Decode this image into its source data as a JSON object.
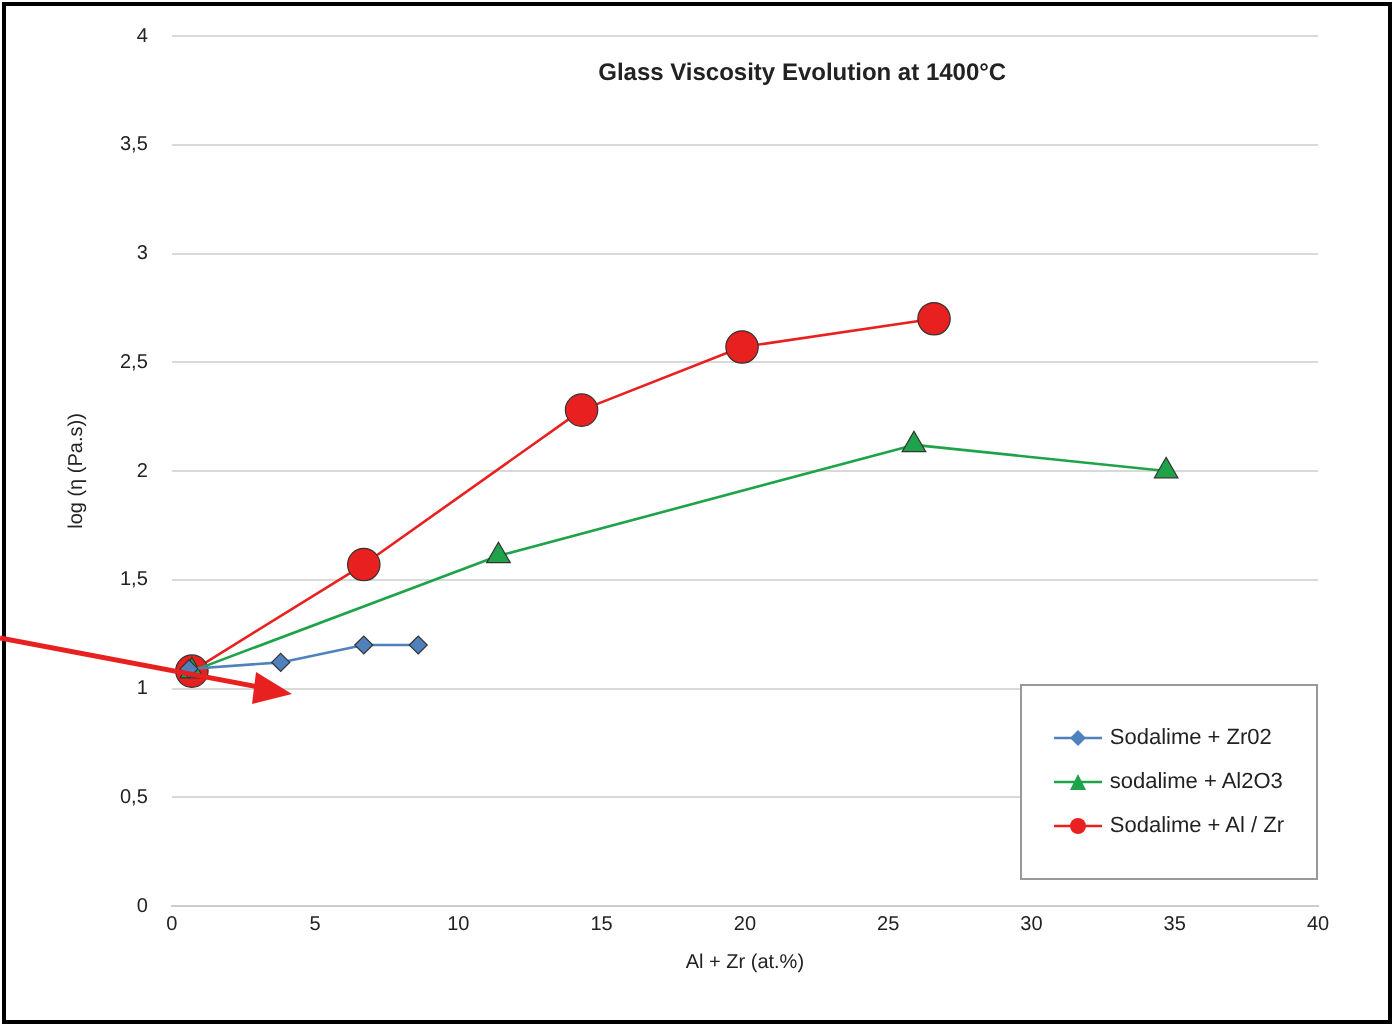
{
  "chart_data": {
    "type": "line",
    "title": "Glass Viscosity Evolution at 1400°C",
    "xlabel": "Al + Zr (at.%)",
    "ylabel": "log (η (Pa.s))",
    "xlim": [
      0,
      40
    ],
    "xticks": [
      0,
      5,
      10,
      15,
      20,
      25,
      30,
      35,
      40
    ],
    "ylim": [
      0,
      4
    ],
    "yticks": [
      0,
      {
        "value": 0.5,
        "label": "0,5"
      },
      1,
      {
        "value": 1.5,
        "label": "1,5"
      },
      2,
      {
        "value": 2.5,
        "label": "2,5"
      },
      3,
      {
        "value": 3.5,
        "label": "3,5"
      },
      4
    ],
    "grid": "y",
    "legend": "bottom right",
    "line_style": "solid",
    "series": [
      {
        "name": "Sodalime + Zr02",
        "color": "#4f81bd",
        "marker": "diamond",
        "x": [
          0.6,
          3.8,
          6.7,
          8.6
        ],
        "values": [
          1.09,
          1.12,
          1.2,
          1.2
        ]
      },
      {
        "name": "sodalime + Al2O3",
        "color": "#1fa34a",
        "marker": "triangle",
        "x": [
          0.7,
          11.4,
          25.9,
          34.7
        ],
        "values": [
          1.08,
          1.61,
          2.12,
          2.0
        ]
      },
      {
        "name": "Sodalime + Al / Zr",
        "color": "#e8201f",
        "marker": "circle",
        "x": [
          0.7,
          6.7,
          14.3,
          19.9,
          26.6
        ],
        "values": [
          1.08,
          1.57,
          2.28,
          2.57,
          2.7
        ]
      }
    ]
  }
}
